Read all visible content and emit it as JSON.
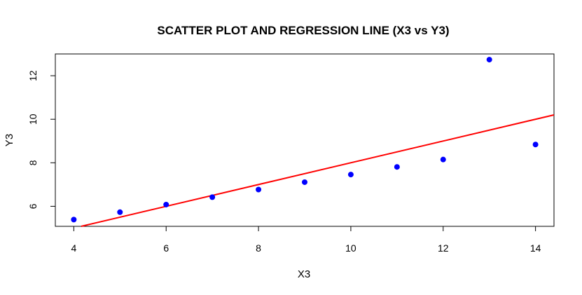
{
  "chart_data": {
    "type": "scatter",
    "title": "SCATTER PLOT AND REGRESSION LINE (X3 vs Y3)",
    "xlabel": "X3",
    "ylabel": "Y3",
    "xlim": [
      3.6,
      14.4
    ],
    "ylim": [
      5.08,
      13.0
    ],
    "xticks": [
      "4",
      "6",
      "8",
      "10",
      "12",
      "14"
    ],
    "yticks": [
      "6",
      "8",
      "10",
      "12"
    ],
    "series": [
      {
        "x": [
          10,
          8,
          13,
          9,
          11,
          14,
          6,
          4,
          12,
          7,
          5
        ],
        "y": [
          7.46,
          6.77,
          12.74,
          7.11,
          7.81,
          8.84,
          6.08,
          5.39,
          8.15,
          6.42,
          5.73
        ],
        "color": "#0000ff"
      }
    ],
    "regression_line": {
      "intercept": 3.0,
      "slope": 0.5,
      "color": "#ff0000"
    },
    "grid": false,
    "legend": "none"
  }
}
